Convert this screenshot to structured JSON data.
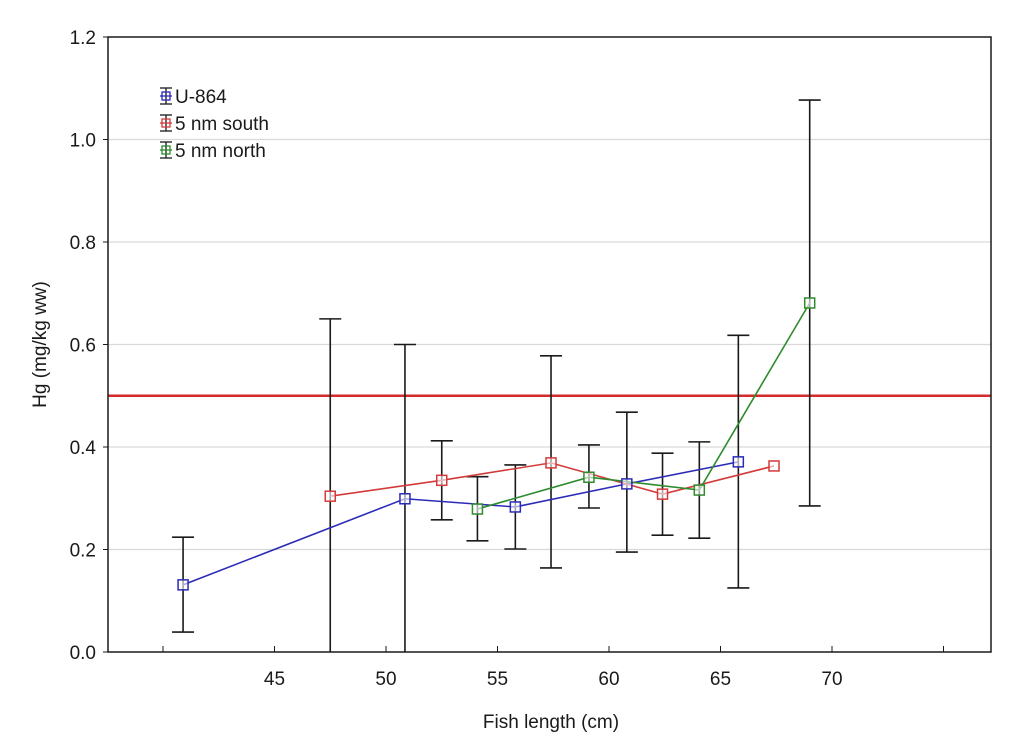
{
  "chart_data": {
    "type": "line",
    "title": "",
    "xlabel": "Fish length (cm)",
    "ylabel": "Hg (mg/kg ww)",
    "xlim": [
      40,
      76.5
    ],
    "ylim": [
      0,
      1.2
    ],
    "xticks": [
      40,
      45,
      50,
      55,
      60,
      65,
      70,
      75
    ],
    "xtick_labels": [
      "",
      "45",
      "50",
      "55",
      "60",
      "65",
      "70",
      ""
    ],
    "yticks": [
      0.0,
      0.2,
      0.4,
      0.6,
      0.8,
      1.0,
      1.2
    ],
    "ytick_labels": [
      "0.0",
      "0.2",
      "0.4",
      "0.6",
      "0.8",
      "1.0",
      "1.2"
    ],
    "grid": "horizontal",
    "legend_position": "top-left",
    "reference_line": {
      "y": 0.5,
      "color": "#d42a2a",
      "label": ""
    },
    "series": [
      {
        "name": "U-864",
        "color": "#2b2bb8",
        "marker": "square",
        "points": [
          {
            "x": 40.9,
            "y": 0.131,
            "err_low": 0.039,
            "err_high": 0.224
          },
          {
            "x": 50.85,
            "y": 0.299,
            "err_low": 0.0,
            "err_high": 0.6
          },
          {
            "x": 55.8,
            "y": 0.283,
            "err_low": 0.201,
            "err_high": 0.365
          },
          {
            "x": 60.8,
            "y": 0.328,
            "err_low": 0.195,
            "err_high": 0.468
          },
          {
            "x": 65.8,
            "y": 0.371,
            "err_low": 0.125,
            "err_high": 0.618
          }
        ]
      },
      {
        "name": "5 nm south",
        "color": "#d43a3a",
        "marker": "square",
        "points": [
          {
            "x": 47.5,
            "y": 0.304,
            "err_low": 0.0,
            "err_high": 0.65
          },
          {
            "x": 52.5,
            "y": 0.335,
            "err_low": 0.258,
            "err_high": 0.412
          },
          {
            "x": 57.4,
            "y": 0.369,
            "err_low": 0.164,
            "err_high": 0.578
          },
          {
            "x": 62.4,
            "y": 0.308,
            "err_low": 0.228,
            "err_high": 0.388
          },
          {
            "x": 67.4,
            "y": 0.363,
            "err_low": null,
            "err_high": null
          }
        ]
      },
      {
        "name": "5 nm north",
        "color": "#2e8b2e",
        "marker": "square",
        "points": [
          {
            "x": 54.1,
            "y": 0.279,
            "err_low": 0.217,
            "err_high": 0.342
          },
          {
            "x": 59.1,
            "y": 0.341,
            "err_low": 0.281,
            "err_high": 0.404
          },
          {
            "x": 64.05,
            "y": 0.316,
            "err_low": 0.222,
            "err_high": 0.41
          },
          {
            "x": 69.0,
            "y": 0.681,
            "err_low": 0.285,
            "err_high": 1.077
          }
        ]
      }
    ]
  }
}
